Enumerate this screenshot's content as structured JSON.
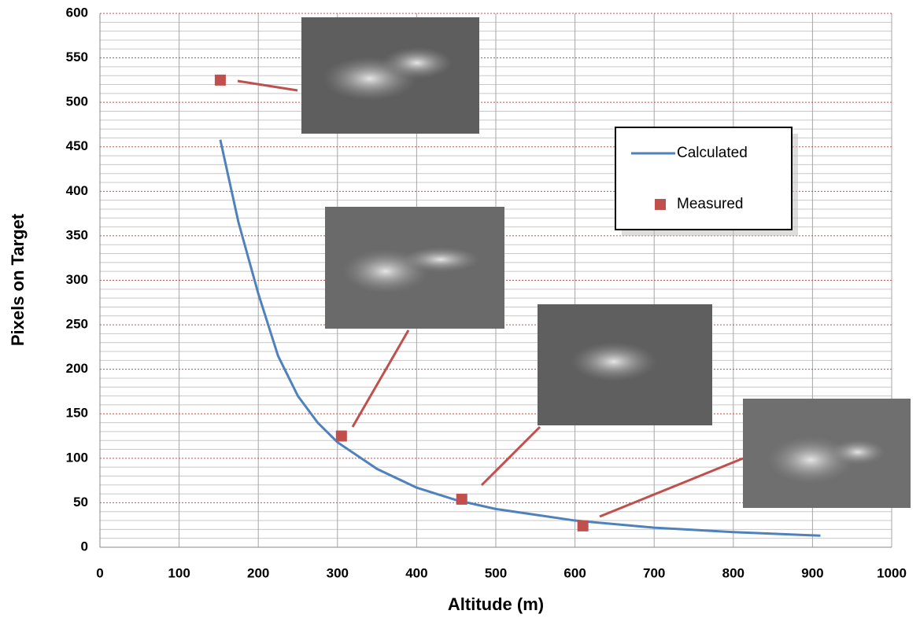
{
  "chart_data": {
    "type": "line",
    "x_label": "Altitude (m)",
    "y_label": "Pixels on Target",
    "xlim": [
      0,
      1000
    ],
    "xticks": [
      0,
      100,
      200,
      300,
      400,
      500,
      600,
      700,
      800,
      900,
      1000
    ],
    "ylim": [
      0,
      600
    ],
    "yticks": [
      0,
      50,
      100,
      150,
      200,
      250,
      300,
      350,
      400,
      450,
      500,
      550,
      600
    ],
    "grid": true,
    "series": [
      {
        "name": "Calculated",
        "type": "line",
        "color": "#4f81bd",
        "x": [
          152,
          175,
          200,
          225,
          250,
          275,
          300,
          350,
          400,
          450,
          500,
          600,
          700,
          800,
          910
        ],
        "values": [
          458,
          365,
          285,
          215,
          170,
          140,
          118,
          88,
          67,
          53,
          43,
          30,
          22,
          17,
          13
        ]
      },
      {
        "name": "Measured",
        "type": "scatter",
        "color": "#c0504d",
        "x": [
          152,
          305,
          457,
          610
        ],
        "values": [
          525,
          125,
          54,
          24
        ]
      }
    ]
  }
}
